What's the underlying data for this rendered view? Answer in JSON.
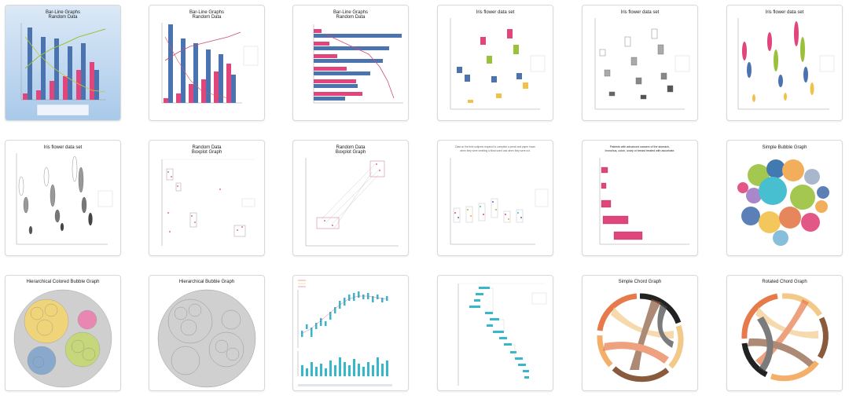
{
  "gallery": {
    "thumbnails": [
      {
        "title": "Bar-Line Graphs",
        "subtitle": "Random Data"
      },
      {
        "title": "Bar-Line Graphs",
        "subtitle": "Random Data"
      },
      {
        "title": "Bar-Line Graphs",
        "subtitle": "Random Data"
      },
      {
        "title": "Iris flower data set"
      },
      {
        "title": "Iris flower data set"
      },
      {
        "title": "Iris flower data set"
      },
      {
        "title": "Iris flower data set"
      },
      {
        "title": "Random Data",
        "subtitle": "Boxplot Graph"
      },
      {
        "title": "Random Data",
        "subtitle": "Boxplot Graph"
      },
      {
        "title": "Data on the time subjects required to complete a pencil and paper maze",
        "subtitle": "when they were smelling a floral scent and when they were not."
      },
      {
        "title": "Patients with advanced cancers of the stomach,",
        "subtitle": "bronchus, colon, ovary or breast treated with ascorbate."
      },
      {
        "title": "Simple Bubble Graph"
      },
      {
        "title": "Hierarchical Colored Bubble Graph"
      },
      {
        "title": "Hierarchical Bubble Graph"
      },
      {
        "title": ""
      },
      {
        "title": ""
      },
      {
        "title": "Simple Chord Graph"
      },
      {
        "title": "Rotated Chord Graph"
      }
    ]
  },
  "colors": {
    "blue": "#4a73b0",
    "pink": "#e0457b",
    "green": "#9bc13c",
    "cyan": "#35b8cc",
    "orange": "#f2a64a",
    "border": "#d9d9d9"
  }
}
